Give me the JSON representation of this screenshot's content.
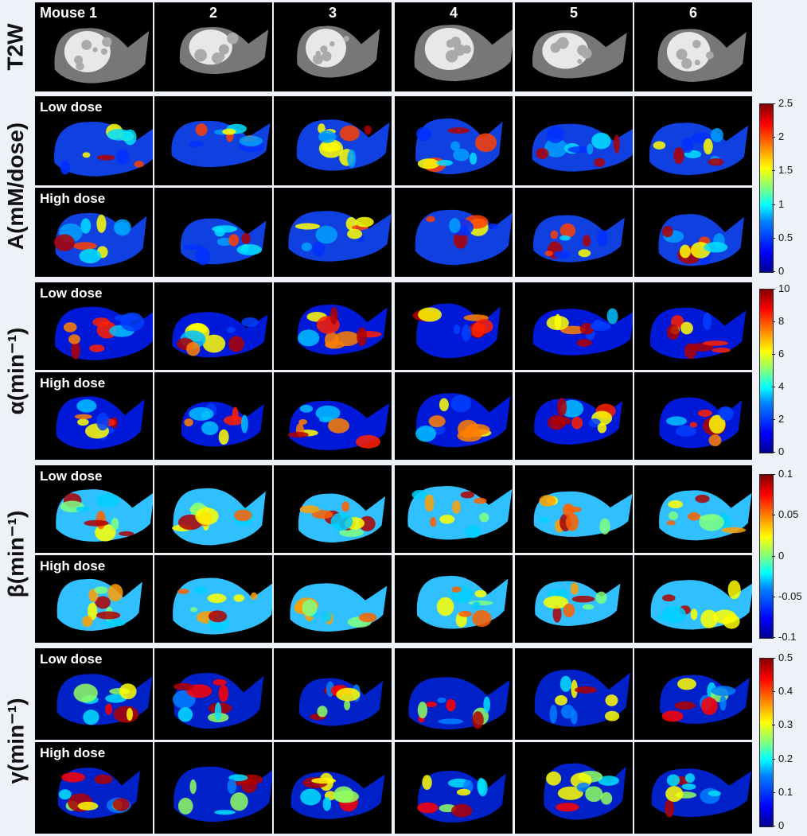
{
  "headers": [
    "Mouse 1",
    "2",
    "3",
    "4",
    "5",
    "6"
  ],
  "row_labels": {
    "t2w": "T2W",
    "a": "A(mM/dose)",
    "alpha": "α(min⁻¹)",
    "beta": "β(min⁻¹)",
    "gamma": "γ(min⁻¹)"
  },
  "dose_labels": {
    "low": "Low dose",
    "high": "High dose"
  },
  "colorbars": {
    "a": [
      "2.5",
      "2",
      "1.5",
      "1",
      "0.5",
      "0"
    ],
    "alpha": [
      "10",
      "8",
      "6",
      "4",
      "2",
      "0"
    ],
    "beta": [
      "0.1",
      "0.05",
      "0",
      "-0.05",
      "-0.1"
    ],
    "gamma": [
      "0.5",
      "0.4",
      "0.3",
      "0.2",
      "0.1",
      "0"
    ]
  },
  "colors": {
    "background": "#eef2f8",
    "panel": "#000000"
  }
}
